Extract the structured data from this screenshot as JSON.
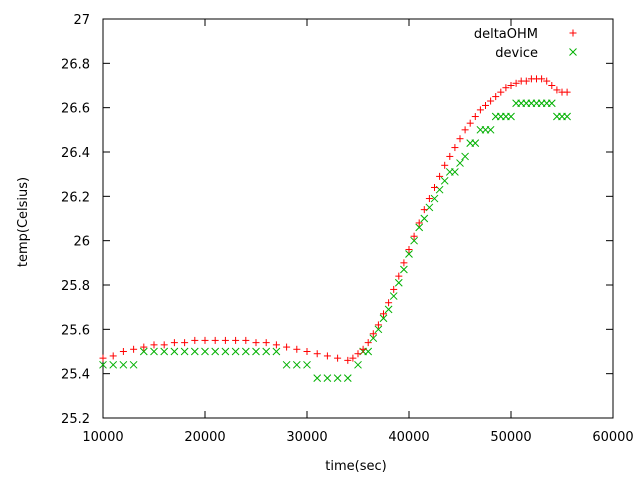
{
  "chart_data": {
    "type": "scatter",
    "xlabel": "time(sec)",
    "ylabel": "temp(Celsius)",
    "xlim": [
      10000,
      60000
    ],
    "ylim": [
      25.2,
      27
    ],
    "xticks": [
      10000,
      20000,
      30000,
      40000,
      50000,
      60000
    ],
    "yticks": [
      25.2,
      25.4,
      25.6,
      25.8,
      26,
      26.2,
      26.4,
      26.6,
      26.8,
      27
    ],
    "grid": false,
    "legend_position": "top-right",
    "series": [
      {
        "name": "deltaOHM",
        "marker": "+",
        "color": "#ff0000",
        "x": [
          10000,
          11000,
          12000,
          13000,
          14000,
          15000,
          16000,
          17000,
          18000,
          19000,
          20000,
          21000,
          22000,
          23000,
          24000,
          25000,
          26000,
          27000,
          28000,
          29000,
          30000,
          31000,
          32000,
          33000,
          34000,
          34500,
          35000,
          35500,
          36000,
          36500,
          37000,
          37500,
          38000,
          38500,
          39000,
          39500,
          40000,
          40500,
          41000,
          41500,
          42000,
          42500,
          43000,
          43500,
          44000,
          44500,
          45000,
          45500,
          46000,
          46500,
          47000,
          47500,
          48000,
          48500,
          49000,
          49500,
          50000,
          50500,
          51000,
          51500,
          52000,
          52500,
          53000,
          53500,
          54000,
          54500,
          55000,
          55500
        ],
        "y": [
          25.47,
          25.48,
          25.5,
          25.51,
          25.52,
          25.53,
          25.53,
          25.54,
          25.54,
          25.55,
          25.55,
          25.55,
          25.55,
          25.55,
          25.55,
          25.54,
          25.54,
          25.53,
          25.52,
          25.51,
          25.5,
          25.49,
          25.48,
          25.47,
          25.46,
          25.47,
          25.49,
          25.51,
          25.54,
          25.58,
          25.62,
          25.67,
          25.72,
          25.78,
          25.84,
          25.9,
          25.96,
          26.02,
          26.08,
          26.14,
          26.19,
          26.24,
          26.29,
          26.34,
          26.38,
          26.42,
          26.46,
          26.5,
          26.53,
          26.56,
          26.59,
          26.61,
          26.63,
          26.65,
          26.67,
          26.69,
          26.7,
          26.71,
          26.72,
          26.72,
          26.73,
          26.73,
          26.73,
          26.72,
          26.7,
          26.68,
          26.67,
          26.67
        ]
      },
      {
        "name": "device",
        "marker": "x",
        "color": "#00b000",
        "x": [
          10000,
          11000,
          12000,
          13000,
          14000,
          15000,
          16000,
          17000,
          18000,
          19000,
          20000,
          21000,
          22000,
          23000,
          24000,
          25000,
          26000,
          27000,
          28000,
          29000,
          30000,
          31000,
          32000,
          33000,
          34000,
          35000,
          35500,
          36000,
          36500,
          37000,
          37500,
          38000,
          38500,
          39000,
          39500,
          40000,
          40500,
          41000,
          41500,
          42000,
          42500,
          43000,
          43500,
          44000,
          44500,
          45000,
          45500,
          46000,
          46500,
          47000,
          47500,
          48000,
          48500,
          49000,
          49500,
          50000,
          50500,
          51000,
          51500,
          52000,
          52500,
          53000,
          53500,
          54000,
          54500,
          55000,
          55500
        ],
        "y": [
          25.44,
          25.44,
          25.44,
          25.44,
          25.5,
          25.5,
          25.5,
          25.5,
          25.5,
          25.5,
          25.5,
          25.5,
          25.5,
          25.5,
          25.5,
          25.5,
          25.5,
          25.5,
          25.44,
          25.44,
          25.44,
          25.38,
          25.38,
          25.38,
          25.38,
          25.44,
          25.5,
          25.5,
          25.56,
          25.6,
          25.65,
          25.69,
          25.75,
          25.81,
          25.87,
          25.94,
          26.0,
          26.06,
          26.1,
          26.15,
          26.19,
          26.23,
          26.27,
          26.31,
          26.31,
          26.35,
          26.38,
          26.44,
          26.44,
          26.5,
          26.5,
          26.5,
          26.56,
          26.56,
          26.56,
          26.56,
          26.62,
          26.62,
          26.62,
          26.62,
          26.62,
          26.62,
          26.62,
          26.62,
          26.56,
          26.56,
          26.56
        ]
      }
    ]
  }
}
